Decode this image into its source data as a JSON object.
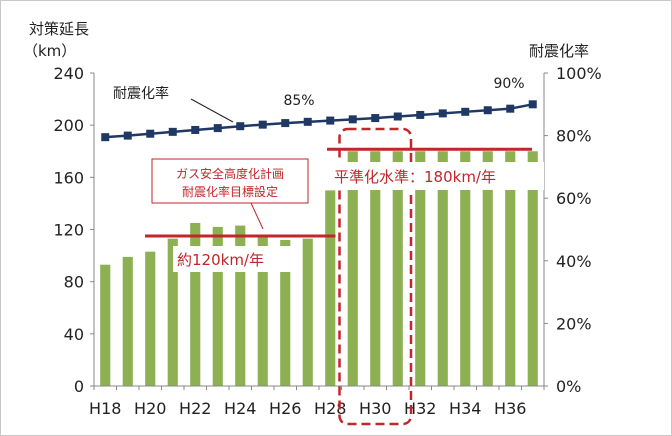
{
  "chart_data": {
    "type": "bar",
    "y_left_title": "対策延長",
    "y_left_unit": "（km）",
    "y_right_title": "耐震化率",
    "y_left_ticks": [
      "0",
      "40",
      "80",
      "120",
      "160",
      "200",
      "240"
    ],
    "y_right_ticks": [
      "0%",
      "20%",
      "40%",
      "60%",
      "80%",
      "100%"
    ],
    "ylim_left": [
      0,
      240
    ],
    "ylim_right": [
      0,
      100
    ],
    "x_tick_labels": [
      "H18",
      "H20",
      "H22",
      "H24",
      "H26",
      "H28",
      "H30",
      "H32",
      "H34",
      "H36"
    ],
    "categories": [
      "H18",
      "H19",
      "H20",
      "H21",
      "H22",
      "H23",
      "H24",
      "H25",
      "H26",
      "H27",
      "H28",
      "H29",
      "H30",
      "H31",
      "H32",
      "H33",
      "H34",
      "H35",
      "H36",
      "H37"
    ],
    "series": [
      {
        "type": "bar",
        "axis": "left",
        "values": [
          93,
          99,
          103,
          113,
          125,
          122,
          123,
          115,
          112,
          113,
          150,
          180,
          180,
          180,
          180,
          180,
          180,
          180,
          180,
          180
        ]
      },
      {
        "name": "耐震化率",
        "type": "line",
        "axis": "right",
        "values": [
          79.5,
          80.0,
          80.6,
          81.2,
          81.8,
          82.4,
          83.0,
          83.5,
          84.0,
          84.4,
          84.8,
          85.2,
          85.6,
          86.1,
          86.6,
          87.1,
          87.6,
          88.1,
          88.6,
          90.0
        ]
      }
    ],
    "grid": false,
    "annotations": {
      "label_85": "85%",
      "label_90": "90%",
      "line_label": "耐震化率",
      "plan_box_line1": "ガス安全高度化計画",
      "plan_box_line2": "耐震化率目標設定",
      "level_120": "約120km/年",
      "level_180": "平準化水準：180km/年"
    },
    "reference_levels": {
      "level_120": {
        "value": 115,
        "from": "H20",
        "to": "H28"
      },
      "level_180": {
        "value": 180,
        "from": "H28",
        "to": "H37"
      }
    },
    "highlight_range": [
      "H29",
      "H31"
    ]
  },
  "colors": {
    "bar": "#8db052",
    "line": "#203864",
    "level": "#c0262a",
    "axis": "#888888",
    "text": "#222222"
  }
}
